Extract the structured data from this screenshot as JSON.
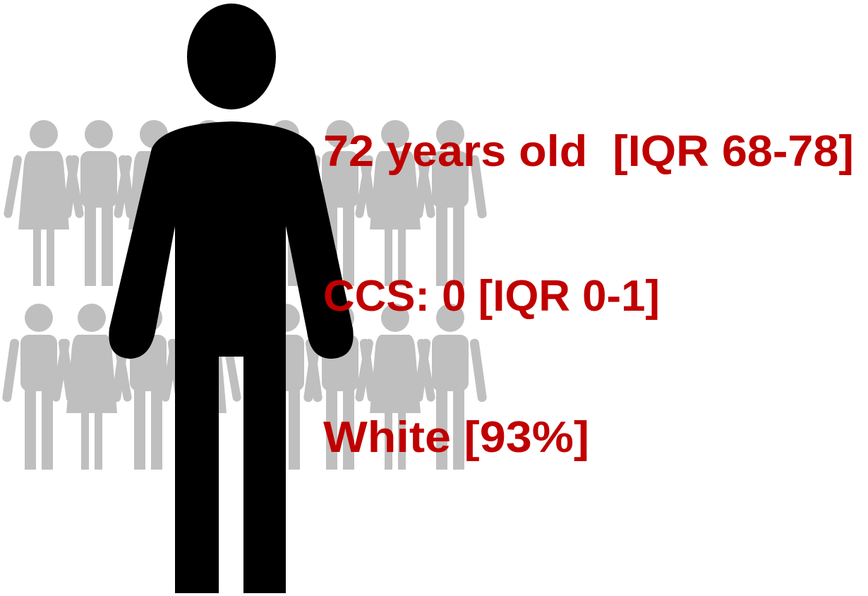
{
  "stats": [
    "72 years old  [IQR 68-78]",
    "CCS: 0 [IQR 0-1]",
    "White [93%]"
  ]
}
